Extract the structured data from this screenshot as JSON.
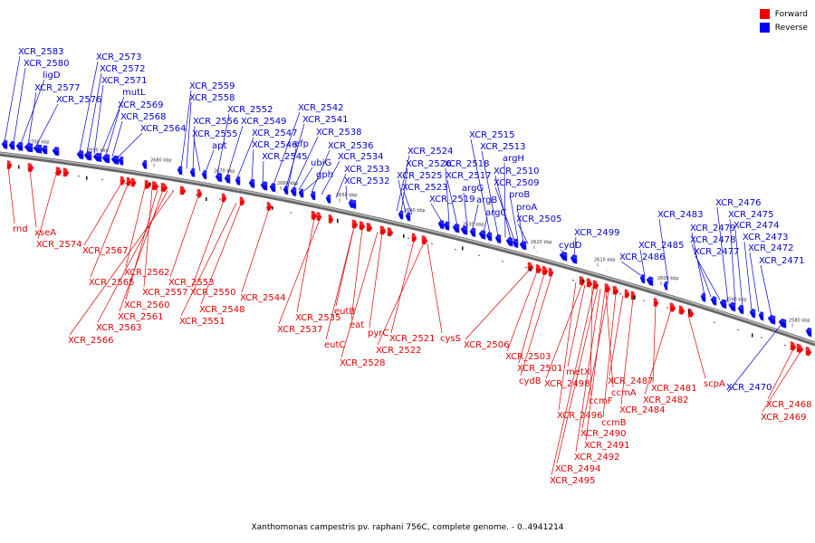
{
  "legend": {
    "forward_label": "Forward",
    "reverse_label": "Reverse",
    "forward_color": "#ee0000",
    "reverse_color": "#0000ee"
  },
  "caption": "Xanthomonas campestris pv. raphani 756C, complete genome. - 0..4941214",
  "ticks": [
    "2700 kbp",
    "2690 kbp",
    "2680 kbp",
    "2670 kbp",
    "2660 kbp",
    "2650 kbp",
    "2640 kbp",
    "2630 kbp",
    "2620 kbp",
    "2610 kbp",
    "2600 kbp",
    "2590 kbp",
    "2580 kbp"
  ],
  "reverse_labels": [
    "XCR_2583",
    "XCR_2580",
    "ligD",
    "XCR_2577",
    "XCR_2576",
    "XCR_2573",
    "XCR_2572",
    "XCR_2571",
    "mutL",
    "XCR_2569",
    "XCR_2568",
    "XCR_2564",
    "XCR_2559",
    "XCR_2558",
    "XCR_2556",
    "XCR_2555",
    "apt",
    "XCR_2552",
    "XCR_2549",
    "XCR_2547",
    "XCR_2546",
    "XCR_2545",
    "XCR_2542",
    "XCR_2541",
    "XCR_2538",
    "efp",
    "ubiG",
    "gph",
    "XCR_2536",
    "XCR_2534",
    "XCR_2533",
    "XCR_2532",
    "XCR_2524",
    "XCR_2526",
    "XCR_2525",
    "XCR_2523",
    "XCR_2519",
    "XCR_2518",
    "XCR_2517",
    "argG",
    "argB",
    "argC",
    "XCR_2515",
    "XCR_2513",
    "argH",
    "XCR_2510",
    "XCR_2509",
    "proB",
    "proA",
    "XCR_2505",
    "cydD",
    "XCR_2499",
    "XCR_2486",
    "XCR_2485",
    "XCR_2483",
    "XCR_2479",
    "XCR_2478",
    "XCR_2477",
    "XCR_2476",
    "XCR_2475",
    "XCR_2474",
    "XCR_2473",
    "XCR_2472",
    "XCR_2471",
    "XCR_2470"
  ],
  "forward_labels": [
    "rnd",
    "xseA",
    "XCR_2574",
    "XCR_2567",
    "XCR_2565",
    "XCR_2562",
    "XCR_2557",
    "XCR_2560",
    "XCR_2561",
    "XCR_2563",
    "XCR_2566",
    "XCR_2553",
    "XCR_2550",
    "XCR_2548",
    "XCR_2551",
    "XCR_2544",
    "XCR_2535",
    "XCR_2537",
    "eutB",
    "eat",
    "eutC",
    "pyrC",
    "XCR_2528",
    "XCR_2521",
    "XCR_2522",
    "cysS",
    "XCR_2506",
    "XCR_2503",
    "XCR_2501",
    "cydB",
    "metX",
    "XCR_2498",
    "ccmF",
    "ccmA",
    "XCR_2487",
    "XCR_2496",
    "ccmB",
    "XCR_2490",
    "XCR_2491",
    "XCR_2492",
    "XCR_2494",
    "XCR_2495",
    "XCR_2484",
    "XCR_2481",
    "XCR_2482",
    "scpA",
    "XCR_2468",
    "XCR_2469"
  ]
}
